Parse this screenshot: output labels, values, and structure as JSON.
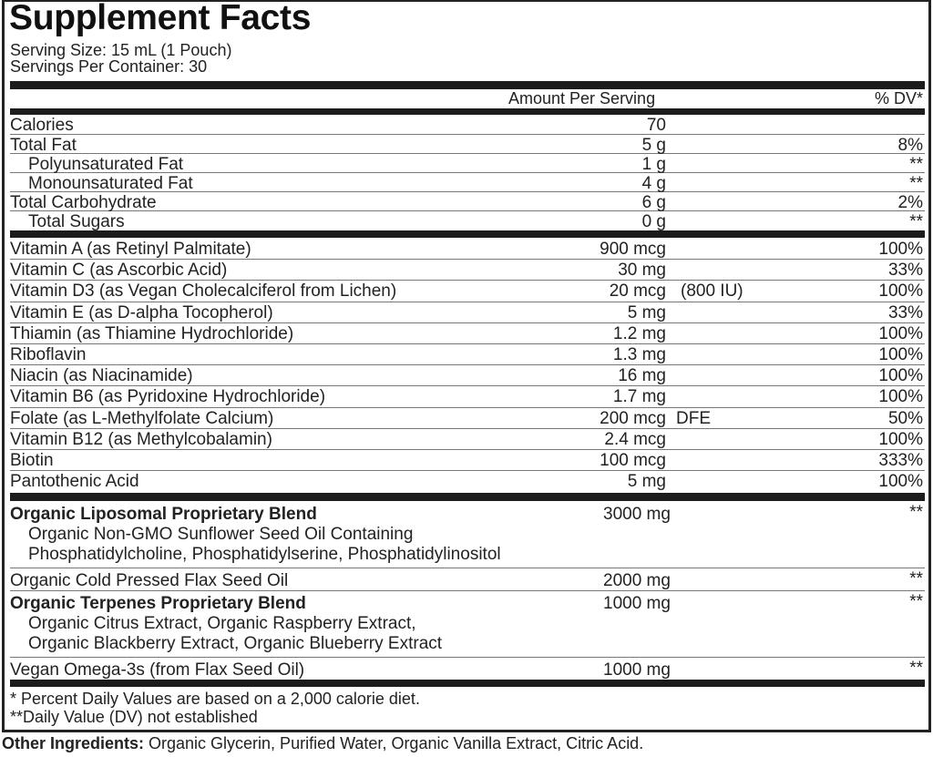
{
  "title": "Supplement Facts",
  "serving_size": "Serving Size: 15 mL (1 Pouch)",
  "servings_per_container": "Servings Per Container: 30",
  "header": {
    "amount": "Amount Per Serving",
    "dv": "% DV*"
  },
  "macros": [
    {
      "name": "Calories",
      "amount": "70",
      "dv": "",
      "indent": false
    },
    {
      "name": "Total Fat",
      "amount": "5 g",
      "dv": "8%",
      "indent": false
    },
    {
      "name": "Polyunsaturated Fat",
      "amount": "1 g",
      "dv": "**",
      "indent": true
    },
    {
      "name": "Monounsaturated Fat",
      "amount": "4 g",
      "dv": "**",
      "indent": true
    },
    {
      "name": "Total Carbohydrate",
      "amount": "6 g",
      "dv": "2%",
      "indent": false
    },
    {
      "name": "Total Sugars",
      "amount": "0 g",
      "dv": "**",
      "indent": true
    }
  ],
  "vitamins": [
    {
      "name": "Vitamin A (as Retinyl Palmitate)",
      "amount": "900 mcg",
      "extra": "",
      "dv": "100%"
    },
    {
      "name": "Vitamin C (as Ascorbic Acid)",
      "amount": "30 mg",
      "extra": "",
      "dv": "33%"
    },
    {
      "name": "Vitamin D3 (as Vegan Cholecalciferol from Lichen)",
      "amount": "20 mcg",
      "extra": "(800 IU)",
      "dv": "100%"
    },
    {
      "name": "Vitamin E (as D-alpha Tocopherol)",
      "amount": "5 mg",
      "extra": "",
      "dv": "33%"
    },
    {
      "name": "Thiamin (as Thiamine Hydrochloride)",
      "amount": "1.2 mg",
      "extra": "",
      "dv": "100%"
    },
    {
      "name": "Riboflavin",
      "amount": "1.3 mg",
      "extra": "",
      "dv": "100%"
    },
    {
      "name": "Niacin (as Niacinamide)",
      "amount": "16 mg",
      "extra": "",
      "dv": "100%"
    },
    {
      "name": "Vitamin B6 (as Pyridoxine Hydrochloride)",
      "amount": "1.7 mg",
      "extra": "",
      "dv": "100%"
    },
    {
      "name": "Folate (as L-Methylfolate Calcium)",
      "amount": "200 mcg",
      "extra": "DFE",
      "dv": "50%"
    },
    {
      "name": "Vitamin B12 (as Methylcobalamin)",
      "amount": "2.4 mcg",
      "extra": "",
      "dv": "100%"
    },
    {
      "name": "Biotin",
      "amount": "100 mcg",
      "extra": "",
      "dv": "333%"
    },
    {
      "name": "Pantothenic Acid",
      "amount": "5 mg",
      "extra": "",
      "dv": "100%"
    }
  ],
  "blends": [
    {
      "name": "Organic Liposomal Proprietary Blend",
      "bold": true,
      "amount": "3000 mg",
      "dv": "**",
      "sub": [
        "Organic Non-GMO Sunflower Seed Oil Containing",
        "Phosphatidylcholine, Phosphatidylserine, Phosphatidylinositol"
      ]
    },
    {
      "name": "Organic Cold Pressed Flax Seed Oil",
      "bold": false,
      "amount": "2000 mg",
      "dv": "**",
      "sub": []
    },
    {
      "name": "Organic Terpenes Proprietary Blend",
      "bold": true,
      "amount": "1000 mg",
      "dv": "**",
      "sub": [
        "Organic Citrus Extract, Organic Raspberry Extract,",
        "Organic Blackberry Extract, Organic Blueberry Extract"
      ]
    },
    {
      "name": "Vegan Omega-3s (from Flax Seed Oil)",
      "bold": false,
      "amount": "1000 mg",
      "dv": "**",
      "sub": []
    }
  ],
  "footnotes": [
    "* Percent Daily Values are based on a 2,000 calorie diet.",
    "**Daily Value (DV) not established"
  ],
  "other_ingredients": {
    "label": "Other Ingredients:",
    "text": " Organic Glycerin, Purified Water, Organic Vanilla Extract, Citric Acid."
  }
}
